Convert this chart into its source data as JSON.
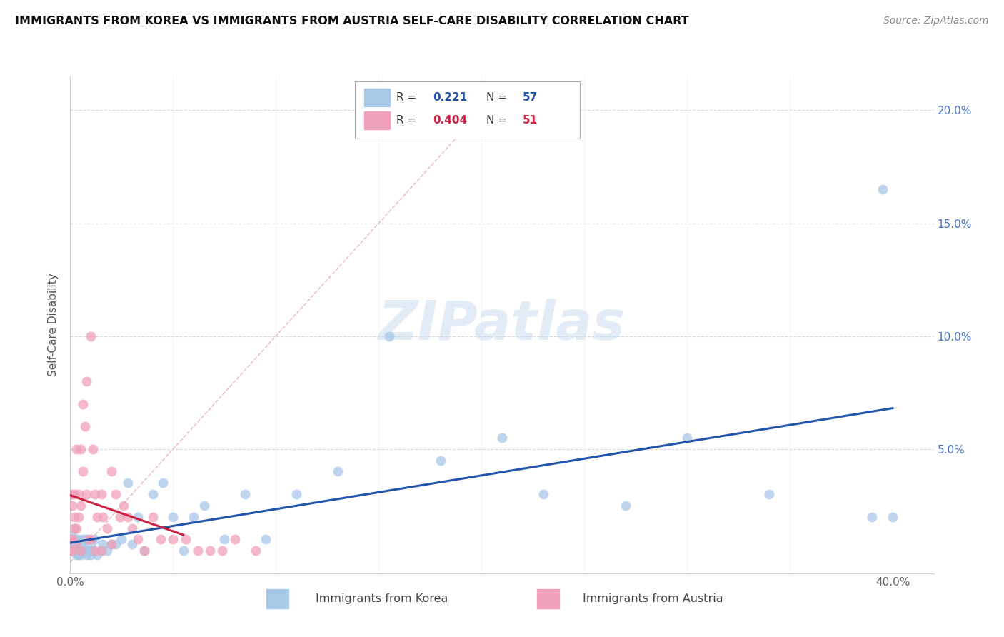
{
  "title": "IMMIGRANTS FROM KOREA VS IMMIGRANTS FROM AUSTRIA SELF-CARE DISABILITY CORRELATION CHART",
  "source": "Source: ZipAtlas.com",
  "ylabel": "Self-Care Disability",
  "xlim": [
    0.0,
    0.42
  ],
  "ylim": [
    -0.005,
    0.215
  ],
  "korea_R": 0.221,
  "korea_N": 57,
  "austria_R": 0.404,
  "austria_N": 51,
  "korea_color": "#a8c8e8",
  "austria_color": "#f0a0b8",
  "korea_line_color": "#2255aa",
  "austria_line_color": "#cc2244",
  "diag_line_color": "#d0b0b0",
  "korea_x": [
    0.0005,
    0.001,
    0.001,
    0.001,
    0.002,
    0.002,
    0.002,
    0.003,
    0.003,
    0.003,
    0.004,
    0.004,
    0.005,
    0.005,
    0.005,
    0.006,
    0.006,
    0.007,
    0.008,
    0.008,
    0.009,
    0.01,
    0.01,
    0.011,
    0.012,
    0.013,
    0.015,
    0.016,
    0.018,
    0.02,
    0.022,
    0.025,
    0.028,
    0.03,
    0.033,
    0.036,
    0.04,
    0.045,
    0.05,
    0.055,
    0.06,
    0.065,
    0.075,
    0.085,
    0.095,
    0.11,
    0.13,
    0.155,
    0.18,
    0.21,
    0.23,
    0.27,
    0.3,
    0.34,
    0.39,
    0.395,
    0.4
  ],
  "korea_y": [
    0.01,
    0.005,
    0.008,
    0.012,
    0.006,
    0.01,
    0.015,
    0.005,
    0.008,
    0.003,
    0.01,
    0.003,
    0.005,
    0.008,
    0.003,
    0.006,
    0.01,
    0.005,
    0.01,
    0.003,
    0.005,
    0.008,
    0.003,
    0.005,
    0.01,
    0.003,
    0.005,
    0.008,
    0.005,
    0.008,
    0.008,
    0.01,
    0.035,
    0.008,
    0.02,
    0.005,
    0.03,
    0.035,
    0.02,
    0.005,
    0.02,
    0.025,
    0.01,
    0.03,
    0.01,
    0.03,
    0.04,
    0.1,
    0.045,
    0.055,
    0.03,
    0.025,
    0.055,
    0.03,
    0.02,
    0.165,
    0.02
  ],
  "austria_x": [
    0.0003,
    0.0005,
    0.001,
    0.001,
    0.001,
    0.001,
    0.002,
    0.002,
    0.002,
    0.003,
    0.003,
    0.003,
    0.004,
    0.004,
    0.005,
    0.005,
    0.005,
    0.006,
    0.006,
    0.007,
    0.008,
    0.008,
    0.009,
    0.01,
    0.011,
    0.012,
    0.013,
    0.015,
    0.016,
    0.018,
    0.02,
    0.022,
    0.024,
    0.026,
    0.028,
    0.03,
    0.033,
    0.036,
    0.04,
    0.044,
    0.05,
    0.056,
    0.062,
    0.068,
    0.074,
    0.08,
    0.09,
    0.01,
    0.012,
    0.015,
    0.02
  ],
  "austria_y": [
    0.005,
    0.01,
    0.03,
    0.025,
    0.01,
    0.005,
    0.02,
    0.03,
    0.015,
    0.05,
    0.015,
    0.008,
    0.03,
    0.02,
    0.05,
    0.025,
    0.005,
    0.07,
    0.04,
    0.06,
    0.08,
    0.03,
    0.01,
    0.1,
    0.05,
    0.03,
    0.02,
    0.03,
    0.02,
    0.015,
    0.04,
    0.03,
    0.02,
    0.025,
    0.02,
    0.015,
    0.01,
    0.005,
    0.02,
    0.01,
    0.01,
    0.01,
    0.005,
    0.005,
    0.005,
    0.01,
    0.005,
    0.01,
    0.005,
    0.005,
    0.008
  ],
  "grid_color": "#d8d8d8",
  "spine_color": "#cccccc",
  "tick_color": "#666666",
  "right_tick_color": "#4472c4",
  "bg_color": "#ffffff"
}
